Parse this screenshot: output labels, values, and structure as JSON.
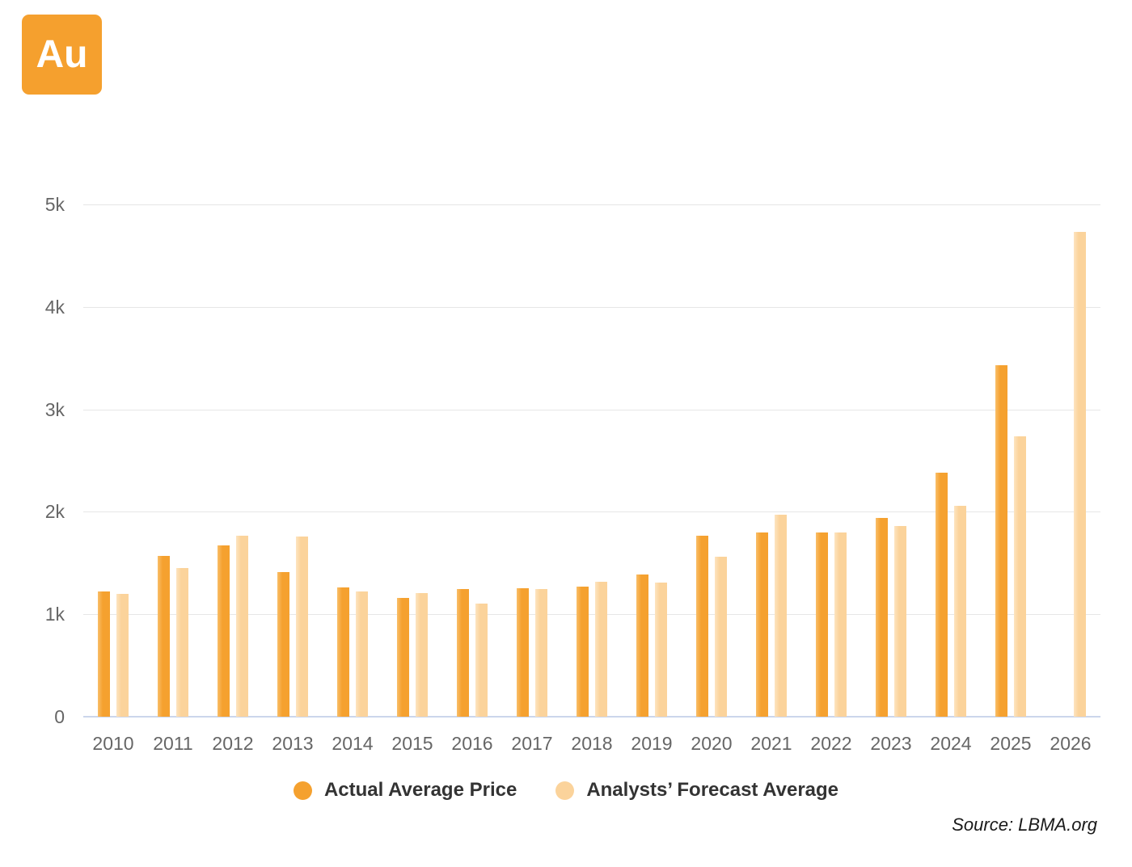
{
  "logo": {
    "text": "Au",
    "background_color": "#f5a02e",
    "text_color": "#ffffff"
  },
  "chart_data": {
    "type": "bar",
    "title": "",
    "xlabel": "",
    "ylabel": "",
    "categories": [
      "2010",
      "2011",
      "2012",
      "2013",
      "2014",
      "2015",
      "2016",
      "2017",
      "2018",
      "2019",
      "2020",
      "2021",
      "2022",
      "2023",
      "2024",
      "2025",
      "2026"
    ],
    "series": [
      {
        "name": "Actual Average Price",
        "color": "#f5a12f",
        "edge_color": "#f9be69",
        "values": [
          1225,
          1570,
          1670,
          1410,
          1265,
          1160,
          1250,
          1255,
          1270,
          1390,
          1770,
          1800,
          1800,
          1940,
          2385,
          3430,
          null
        ]
      },
      {
        "name": "Analysts’ Forecast Average",
        "color": "#fbd39b",
        "edge_color": "#fde4c0",
        "values": [
          1199,
          1455,
          1765,
          1755,
          1220,
          1210,
          1105,
          1245,
          1315,
          1310,
          1560,
          1975,
          1800,
          1860,
          2060,
          2735,
          4730
        ]
      }
    ],
    "ylim": [
      0,
      5000
    ],
    "yticks": [
      {
        "value": 0,
        "label": "0"
      },
      {
        "value": 1000,
        "label": "1k"
      },
      {
        "value": 2000,
        "label": "2k"
      },
      {
        "value": 3000,
        "label": "3k"
      },
      {
        "value": 4000,
        "label": "4k"
      },
      {
        "value": 5000,
        "label": "5k"
      }
    ],
    "grid": true,
    "legend_position": "bottom",
    "gridline_color": "#e6e6e6",
    "axis_line_color": "#ccd6eb",
    "axis_label_color": "#666666"
  },
  "source": {
    "text": "Source: LBMA.org"
  }
}
